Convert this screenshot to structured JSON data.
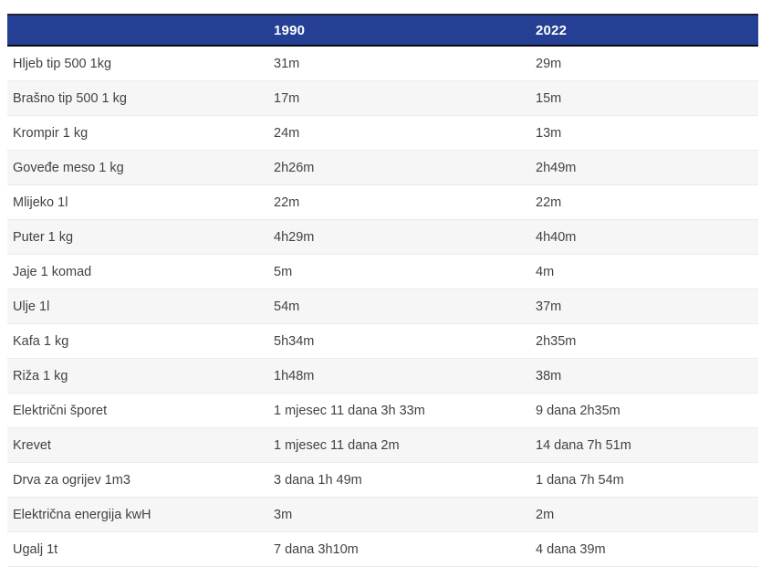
{
  "colors": {
    "header_bg": "#243f94",
    "header_text": "#ffffff",
    "header_border_top": "#20222e",
    "header_border_bottom": "#0b0c11",
    "row_text": "#424242",
    "row_alt_bg": "#f6f6f6",
    "row_border": "#ebebeb"
  },
  "chart_data": {
    "type": "table",
    "columns": [
      "",
      "1990",
      "2022"
    ],
    "rows": [
      {
        "label": "Hljeb tip 500 1kg",
        "v1990": "31m",
        "v2022": "29m"
      },
      {
        "label": "Brašno tip 500 1 kg",
        "v1990": "17m",
        "v2022": "15m"
      },
      {
        "label": "Krompir 1 kg",
        "v1990": "24m",
        "v2022": "13m"
      },
      {
        "label": "Goveđe meso 1 kg",
        "v1990": "2h26m",
        "v2022": "2h49m"
      },
      {
        "label": "Mlijeko 1l",
        "v1990": "22m",
        "v2022": "22m"
      },
      {
        "label": "Puter 1 kg",
        "v1990": "4h29m",
        "v2022": "4h40m"
      },
      {
        "label": "Jaje 1 komad",
        "v1990": "5m",
        "v2022": "4m"
      },
      {
        "label": "Ulje 1l",
        "v1990": "54m",
        "v2022": "37m"
      },
      {
        "label": "Kafa 1 kg",
        "v1990": "5h34m",
        "v2022": "2h35m"
      },
      {
        "label": "Riža 1 kg",
        "v1990": "1h48m",
        "v2022": "38m"
      },
      {
        "label": "Električni šporet",
        "v1990": "1 mjesec 11 dana 3h 33m",
        "v2022": "9 dana 2h35m"
      },
      {
        "label": "Krevet",
        "v1990": "1 mjesec 11 dana 2m",
        "v2022": "14 dana 7h 51m"
      },
      {
        "label": "Drva za ogrijev 1m3",
        "v1990": "3 dana 1h 49m",
        "v2022": "1 dana 7h 54m"
      },
      {
        "label": "Električna energija kwH",
        "v1990": "3m",
        "v2022": "2m"
      },
      {
        "label": "Ugalj 1t",
        "v1990": "7 dana 3h10m",
        "v2022": "4 dana 39m"
      }
    ]
  }
}
